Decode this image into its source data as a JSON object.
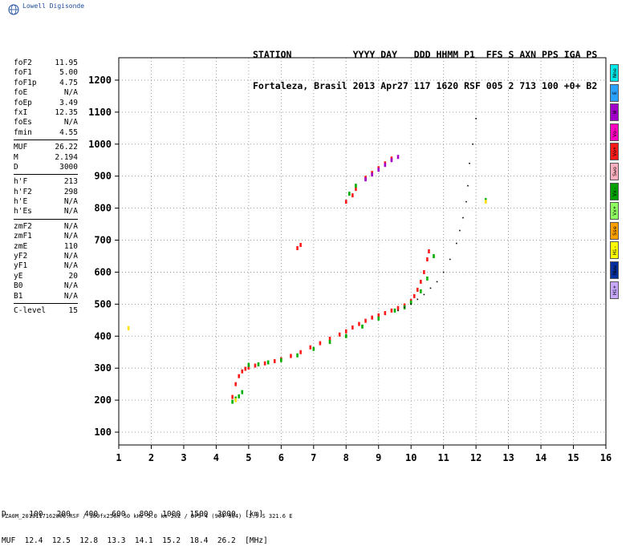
{
  "brand": "Lowell Digisonde",
  "header": {
    "line1": "STATION           YYYY DAY   DDD HHMM P1  FFS S AXN PPS IGA PS",
    "line2": "Fortaleza, Brasil 2013 Apr27 117 1620 RSF 005 2 713 100 +0+ B2"
  },
  "params": [
    [
      {
        "k": "foF2",
        "v": "11.95"
      },
      {
        "k": "foF1",
        "v": "5.00"
      },
      {
        "k": "foF1p",
        "v": "4.75"
      },
      {
        "k": "foE",
        "v": "N/A"
      },
      {
        "k": "foEp",
        "v": "3.49"
      },
      {
        "k": "fxI",
        "v": "12.35"
      },
      {
        "k": "foEs",
        "v": "N/A"
      },
      {
        "k": "fmin",
        "v": "4.55"
      }
    ],
    [
      {
        "k": "MUF",
        "v": "26.22"
      },
      {
        "k": "M",
        "v": "2.194"
      },
      {
        "k": "D",
        "v": "3000"
      }
    ],
    [
      {
        "k": "h'F",
        "v": "213"
      },
      {
        "k": "h'F2",
        "v": "298"
      },
      {
        "k": "h'E",
        "v": "N/A"
      },
      {
        "k": "h'Es",
        "v": "N/A"
      }
    ],
    [
      {
        "k": "zmF2",
        "v": "N/A"
      },
      {
        "k": "zmF1",
        "v": "N/A"
      },
      {
        "k": "zmE",
        "v": "110"
      },
      {
        "k": "yF2",
        "v": "N/A"
      },
      {
        "k": "yF1",
        "v": "N/A"
      },
      {
        "k": "yE",
        "v": "20"
      },
      {
        "k": "B0",
        "v": "N/A"
      },
      {
        "k": "B1",
        "v": "N/A"
      }
    ],
    [
      {
        "k": "C-level",
        "v": "15"
      }
    ]
  ],
  "legend": [
    {
      "label": "Nne",
      "color": "#00e8e8"
    },
    {
      "label": "E",
      "color": "#2aa0ff"
    },
    {
      "label": "W",
      "color": "#a000c8"
    },
    {
      "label": "Vo-",
      "color": "#ff00c0"
    },
    {
      "label": "Vo+",
      "color": "#ff1a1a"
    },
    {
      "label": "Swo",
      "color": "#ffb0c0"
    },
    {
      "label": "Vx-",
      "color": "#00a000"
    },
    {
      "label": "Vx+",
      "color": "#90ff60"
    },
    {
      "label": "Sse",
      "color": "#ffa000"
    },
    {
      "label": "Hi-",
      "color": "#ffff00"
    },
    {
      "label": "Nww",
      "color": "#0030a0"
    },
    {
      "label": "Hi+",
      "color": "#c8a8ff"
    }
  ],
  "muf_table": {
    "line1": "D     100   200   400   600   800  1000  1500  3000  [km]",
    "line2": "MUF  12.4  12.5  12.8  13.3  14.1  15.2  18.4  26.2  [MHz]"
  },
  "footer": "FZA0M_2013117162000.RSF / 300fx256h 50 kHz 5.0 km 2x2 / DPS-4 (904-904)  3.9 S 321.6 E",
  "chart_data": {
    "type": "scatter",
    "x_ticks": [
      "1",
      "2",
      "3",
      "4",
      "5",
      "6",
      "7",
      "8",
      "9",
      "10",
      "11",
      "12",
      "13",
      "14",
      "15",
      "16"
    ],
    "y_ticks": [
      "100",
      "200",
      "300",
      "400",
      "500",
      "600",
      "700",
      "800",
      "900",
      "1000",
      "1100",
      "1200"
    ],
    "xlim": [
      1,
      16
    ],
    "ylim": [
      60,
      1270
    ],
    "grid": true,
    "series": [
      {
        "color": "#ff1a1a",
        "points": [
          [
            4.5,
            210
          ],
          [
            4.6,
            250
          ],
          [
            4.7,
            275
          ],
          [
            4.8,
            290
          ],
          [
            4.9,
            298
          ],
          [
            5.0,
            302
          ],
          [
            5.2,
            308
          ],
          [
            5.5,
            315
          ],
          [
            5.8,
            322
          ],
          [
            6.0,
            328
          ],
          [
            6.3,
            338
          ],
          [
            6.6,
            350
          ],
          [
            6.9,
            365
          ],
          [
            7.2,
            378
          ],
          [
            7.5,
            392
          ],
          [
            7.8,
            405
          ],
          [
            8.0,
            415
          ],
          [
            8.2,
            427
          ],
          [
            8.4,
            438
          ],
          [
            8.6,
            448
          ],
          [
            8.8,
            458
          ],
          [
            9.0,
            465
          ],
          [
            9.2,
            472
          ],
          [
            9.4,
            480
          ],
          [
            9.6,
            488
          ],
          [
            9.8,
            496
          ],
          [
            10.0,
            510
          ],
          [
            10.1,
            525
          ],
          [
            10.2,
            545
          ],
          [
            10.3,
            570
          ],
          [
            10.4,
            600
          ],
          [
            10.5,
            640
          ],
          [
            10.55,
            665
          ],
          [
            6.5,
            675
          ],
          [
            6.6,
            685
          ],
          [
            8.0,
            820
          ],
          [
            8.2,
            840
          ],
          [
            8.3,
            860
          ],
          [
            8.6,
            895
          ],
          [
            8.8,
            910
          ],
          [
            9.0,
            925
          ],
          [
            9.2,
            940
          ],
          [
            9.4,
            955
          ]
        ]
      },
      {
        "color": "#00b000",
        "points": [
          [
            4.5,
            195
          ],
          [
            4.6,
            205
          ],
          [
            4.7,
            212
          ],
          [
            4.8,
            225
          ],
          [
            5.0,
            310
          ],
          [
            5.3,
            312
          ],
          [
            5.6,
            318
          ],
          [
            6.0,
            325
          ],
          [
            6.5,
            340
          ],
          [
            7.0,
            360
          ],
          [
            7.5,
            382
          ],
          [
            8.0,
            400
          ],
          [
            8.5,
            430
          ],
          [
            9.0,
            455
          ],
          [
            9.5,
            480
          ],
          [
            9.8,
            490
          ],
          [
            10.0,
            505
          ],
          [
            10.3,
            540
          ],
          [
            10.5,
            580
          ],
          [
            10.7,
            650
          ],
          [
            8.1,
            845
          ],
          [
            8.3,
            870
          ],
          [
            12.3,
            825
          ]
        ]
      },
      {
        "color": "#ffe000",
        "points": [
          [
            1.3,
            425
          ],
          [
            4.6,
            200
          ],
          [
            12.3,
            820
          ]
        ]
      },
      {
        "color": "#000000",
        "points": [
          [
            9.6,
            480
          ],
          [
            9.8,
            490
          ],
          [
            10.0,
            500
          ],
          [
            10.2,
            515
          ],
          [
            10.4,
            530
          ],
          [
            10.6,
            550
          ],
          [
            10.8,
            570
          ],
          [
            11.0,
            600
          ],
          [
            11.2,
            640
          ],
          [
            11.4,
            690
          ],
          [
            11.5,
            730
          ],
          [
            11.6,
            770
          ],
          [
            11.7,
            820
          ],
          [
            11.75,
            870
          ],
          [
            11.8,
            940
          ],
          [
            11.9,
            1000
          ],
          [
            12.0,
            1080
          ]
        ]
      },
      {
        "color": "#a000c8",
        "points": [
          [
            8.6,
            890
          ],
          [
            8.8,
            905
          ],
          [
            9.0,
            920
          ],
          [
            9.2,
            935
          ],
          [
            9.4,
            950
          ],
          [
            9.6,
            960
          ]
        ]
      }
    ]
  }
}
